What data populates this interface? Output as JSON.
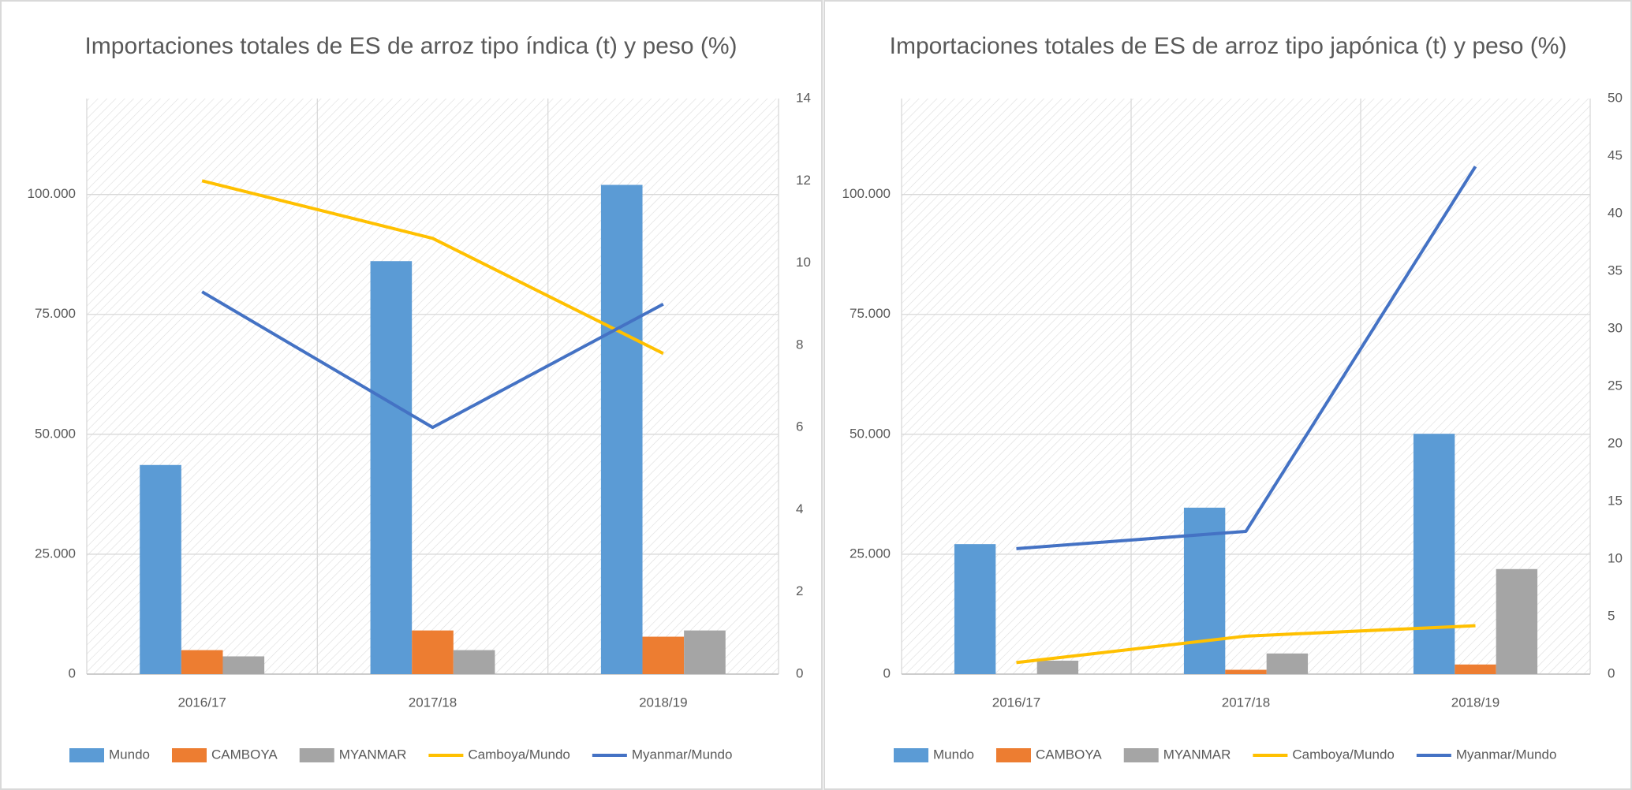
{
  "chart_data": [
    {
      "type": "combo",
      "title": "Importaciones totales de ES de arroz tipo índica (t) y peso (%)",
      "categories": [
        "2016/17",
        "2017/18",
        "2018/19"
      ],
      "series": [
        {
          "name": "Mundo",
          "type": "bar",
          "color": "#5b9bd5",
          "values": [
            43600,
            86100,
            102000
          ]
        },
        {
          "name": "CAMBOYA",
          "type": "bar",
          "color": "#ed7d31",
          "values": [
            5000,
            9100,
            7800
          ]
        },
        {
          "name": "MYANMAR",
          "type": "bar",
          "color": "#a5a5a5",
          "values": [
            3700,
            5000,
            9100
          ]
        },
        {
          "name": "Camboya/Mundo",
          "type": "line",
          "axis": "y2",
          "color": "#ffc000",
          "values": [
            12.0,
            10.6,
            7.8
          ]
        },
        {
          "name": "Myanmar/Mundo",
          "type": "line",
          "axis": "y2",
          "color": "#4472c4",
          "values": [
            9.3,
            6.0,
            9.0
          ]
        }
      ],
      "ylim": [
        0,
        120000
      ],
      "yticks": [
        0,
        {
          "value": 25000,
          "label": "25.000"
        },
        {
          "value": 50000,
          "label": "50.000"
        },
        {
          "value": 75000,
          "label": "75.000"
        },
        {
          "value": 100000,
          "label": "100.000"
        }
      ],
      "y2lim": [
        0,
        14
      ],
      "y2ticks": [
        0,
        2,
        4,
        6,
        8,
        10,
        12,
        14
      ],
      "grid": true,
      "legend": "bottom"
    },
    {
      "type": "combo",
      "title": "Importaciones totales de ES de arroz tipo japónica (t) y peso (%)",
      "categories": [
        "2016/17",
        "2017/18",
        "2018/19"
      ],
      "series": [
        {
          "name": "Mundo",
          "type": "bar",
          "color": "#5b9bd5",
          "values": [
            27100,
            34700,
            50100
          ]
        },
        {
          "name": "CAMBOYA",
          "type": "bar",
          "color": "#ed7d31",
          "values": [
            0,
            900,
            2000
          ]
        },
        {
          "name": "MYANMAR",
          "type": "bar",
          "color": "#a5a5a5",
          "values": [
            2800,
            4300,
            21900
          ]
        },
        {
          "name": "Camboya/Mundo",
          "type": "line",
          "axis": "y2",
          "color": "#ffc000",
          "values": [
            1.0,
            3.3,
            4.2
          ]
        },
        {
          "name": "Myanmar/Mundo",
          "type": "line",
          "axis": "y2",
          "color": "#4472c4",
          "values": [
            10.9,
            12.4,
            44.1
          ]
        }
      ],
      "ylim": [
        0,
        120000
      ],
      "yticks": [
        0,
        {
          "value": 25000,
          "label": "25.000"
        },
        {
          "value": 50000,
          "label": "50.000"
        },
        {
          "value": 75000,
          "label": "75.000"
        },
        {
          "value": 100000,
          "label": "100.000"
        }
      ],
      "y2lim": [
        0,
        50
      ],
      "y2ticks": [
        0,
        5,
        10,
        15,
        20,
        25,
        30,
        35,
        40,
        45,
        50
      ],
      "grid": true,
      "legend": "bottom"
    }
  ]
}
